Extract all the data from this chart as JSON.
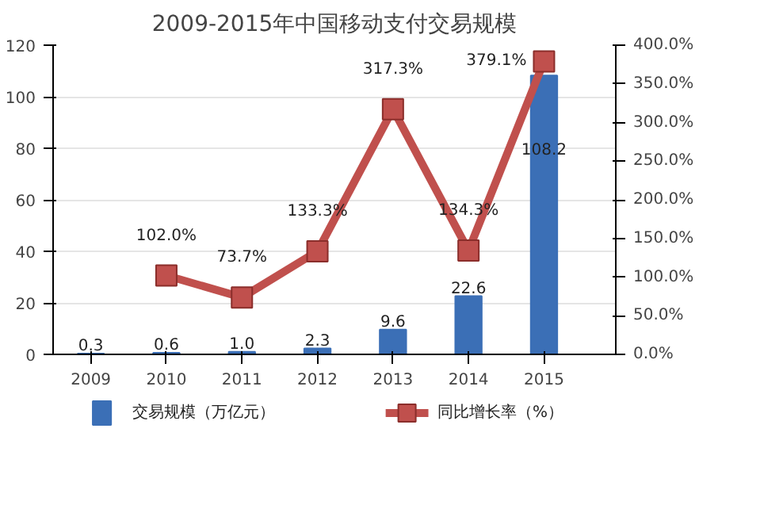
{
  "chart_data": {
    "type": "bar",
    "title": "2009-2015年中国移动支付交易规模",
    "categories": [
      "2009",
      "2010",
      "2011",
      "2012",
      "2013",
      "2014",
      "2015"
    ],
    "series": [
      {
        "name": "交易规模（万亿元）",
        "color": "#3b6fb6",
        "values": [
          0.3,
          0.6,
          1.0,
          2.3,
          9.6,
          22.6,
          108.2
        ],
        "value_labels": [
          "0.3",
          "0.6",
          "1.0",
          "2.3",
          "9.6",
          "22.6",
          "108.2"
        ]
      },
      {
        "name": "同比增长率（%）",
        "type": "line",
        "axis": "y2",
        "color": "#c0504d",
        "values": [
          null,
          102.0,
          73.7,
          133.3,
          317.3,
          134.3,
          379.1
        ],
        "value_labels": [
          null,
          "102.0%",
          "73.7%",
          "133.3%",
          "317.3%",
          "134.3%",
          "379.1%"
        ]
      }
    ],
    "ylim": [
      0,
      120
    ],
    "yticks": [
      0,
      20,
      40,
      60,
      80,
      100,
      120
    ],
    "y2lim": [
      0,
      400
    ],
    "y2ticks": [
      {
        "value": 0,
        "label": "0.0%"
      },
      {
        "value": 50,
        "label": "50.0%"
      },
      {
        "value": 100,
        "label": "100.0%"
      },
      {
        "value": 150,
        "label": "150.0%"
      },
      {
        "value": 200,
        "label": "200.0%"
      },
      {
        "value": 250,
        "label": "250.0%"
      },
      {
        "value": 300,
        "label": "300.0%"
      },
      {
        "value": 350,
        "label": "350.0%"
      },
      {
        "value": 400,
        "label": "400.0%"
      }
    ],
    "grid": "y",
    "legend": "bottom",
    "marker": "square",
    "line_style": "solid"
  }
}
